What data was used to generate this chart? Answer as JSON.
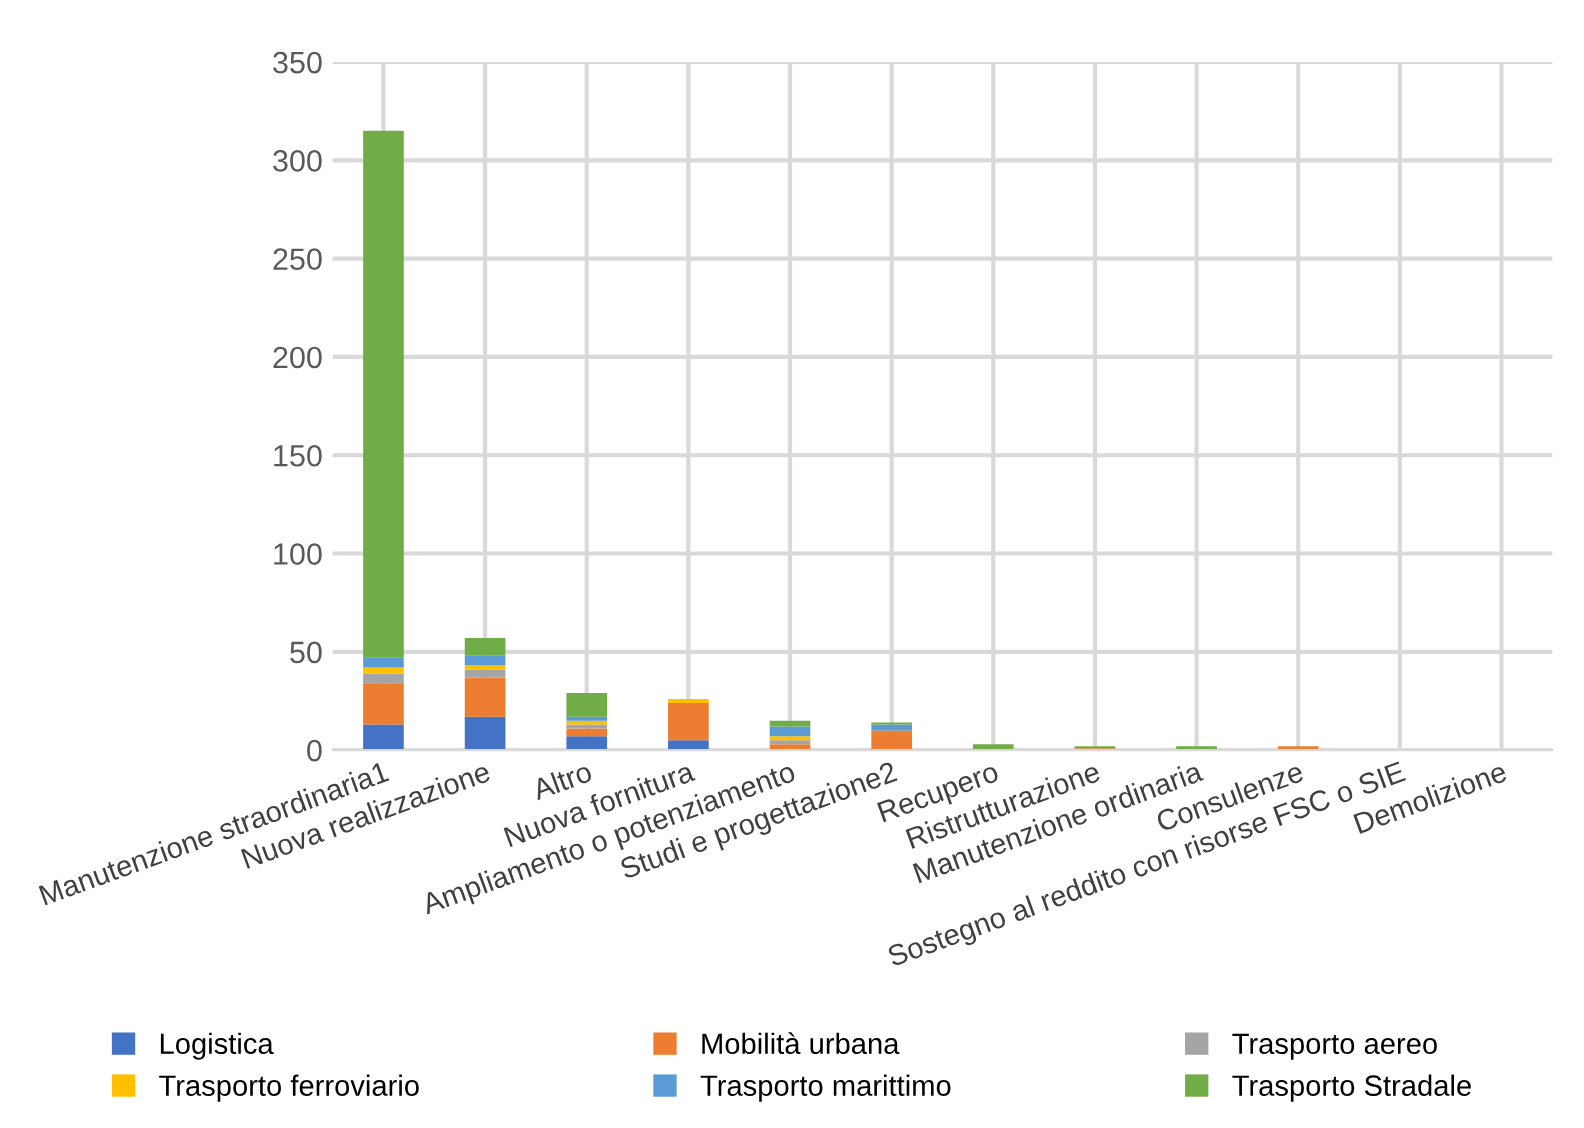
{
  "chart_data": {
    "type": "bar",
    "stacked": true,
    "categories": [
      "Manutenzione straordinaria1",
      "Nuova realizzazione",
      "Altro",
      "Nuova fornitura",
      "Ampliamento o potenziamento",
      "Studi e progettazione2",
      "Recupero",
      "Ristrutturazione",
      "Manutenzione ordinaria",
      "Consulenze",
      "Sostegno al reddito con risorse FSC o SIE",
      "Demolizione"
    ],
    "series": [
      {
        "name": "Logistica",
        "color": "#4472c4",
        "values": [
          13,
          17,
          7,
          5,
          0,
          0,
          0,
          0,
          0,
          0,
          0,
          0
        ]
      },
      {
        "name": "Mobilità urbana",
        "color": "#ed7d31",
        "values": [
          21,
          20,
          4,
          19,
          3,
          10,
          0,
          1,
          0,
          2,
          0,
          0
        ]
      },
      {
        "name": "Trasporto aereo",
        "color": "#a5a5a5",
        "values": [
          5,
          4,
          2,
          0,
          2,
          0,
          0,
          0,
          0,
          0,
          0,
          0
        ]
      },
      {
        "name": "Trasporto ferroviario",
        "color": "#ffc000",
        "values": [
          3,
          2,
          2,
          2,
          2,
          0,
          0,
          0,
          0,
          0,
          0,
          0
        ]
      },
      {
        "name": "Trasporto marittimo",
        "color": "#5b9bd5",
        "values": [
          5,
          5,
          2,
          0,
          5,
          3,
          0,
          0,
          0,
          0,
          0,
          0
        ]
      },
      {
        "name": "Trasporto Stradale",
        "color": "#70ad47",
        "values": [
          268,
          9,
          12,
          0,
          3,
          1,
          3,
          1,
          2,
          0,
          0,
          0
        ]
      }
    ],
    "ylim": [
      0,
      350
    ],
    "yticks": [
      0,
      50,
      100,
      150,
      200,
      250,
      300,
      350
    ],
    "grid": true,
    "legend": "bottom"
  }
}
